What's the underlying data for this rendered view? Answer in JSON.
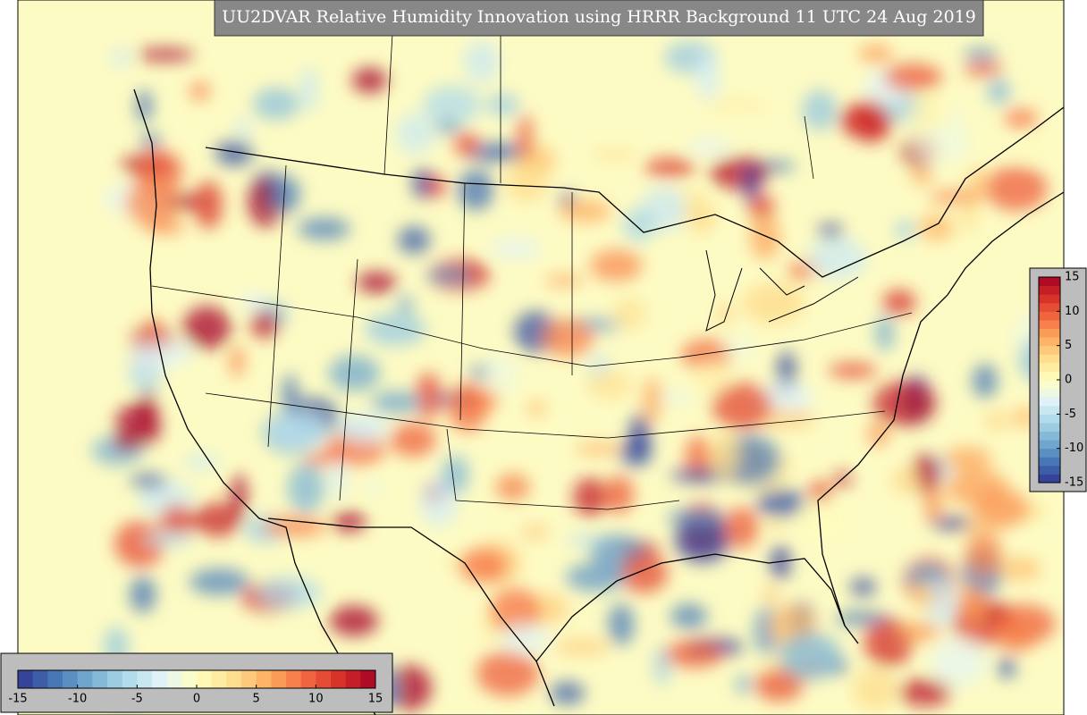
{
  "title": "UU2DVAR Relative Humidity Innovation using HRRR Background 11 UTC 24 Aug 2019",
  "colorbar": {
    "lim": [
      -15,
      15
    ],
    "ticks": [
      -15,
      -10,
      -5,
      0,
      5,
      10,
      15
    ],
    "colors": [
      "#313695",
      "#4575b4",
      "#74add1",
      "#abd9e9",
      "#e0f3f8",
      "#ffffbf",
      "#fee090",
      "#fdae61",
      "#f46d43",
      "#d73027",
      "#a50026"
    ]
  }
}
